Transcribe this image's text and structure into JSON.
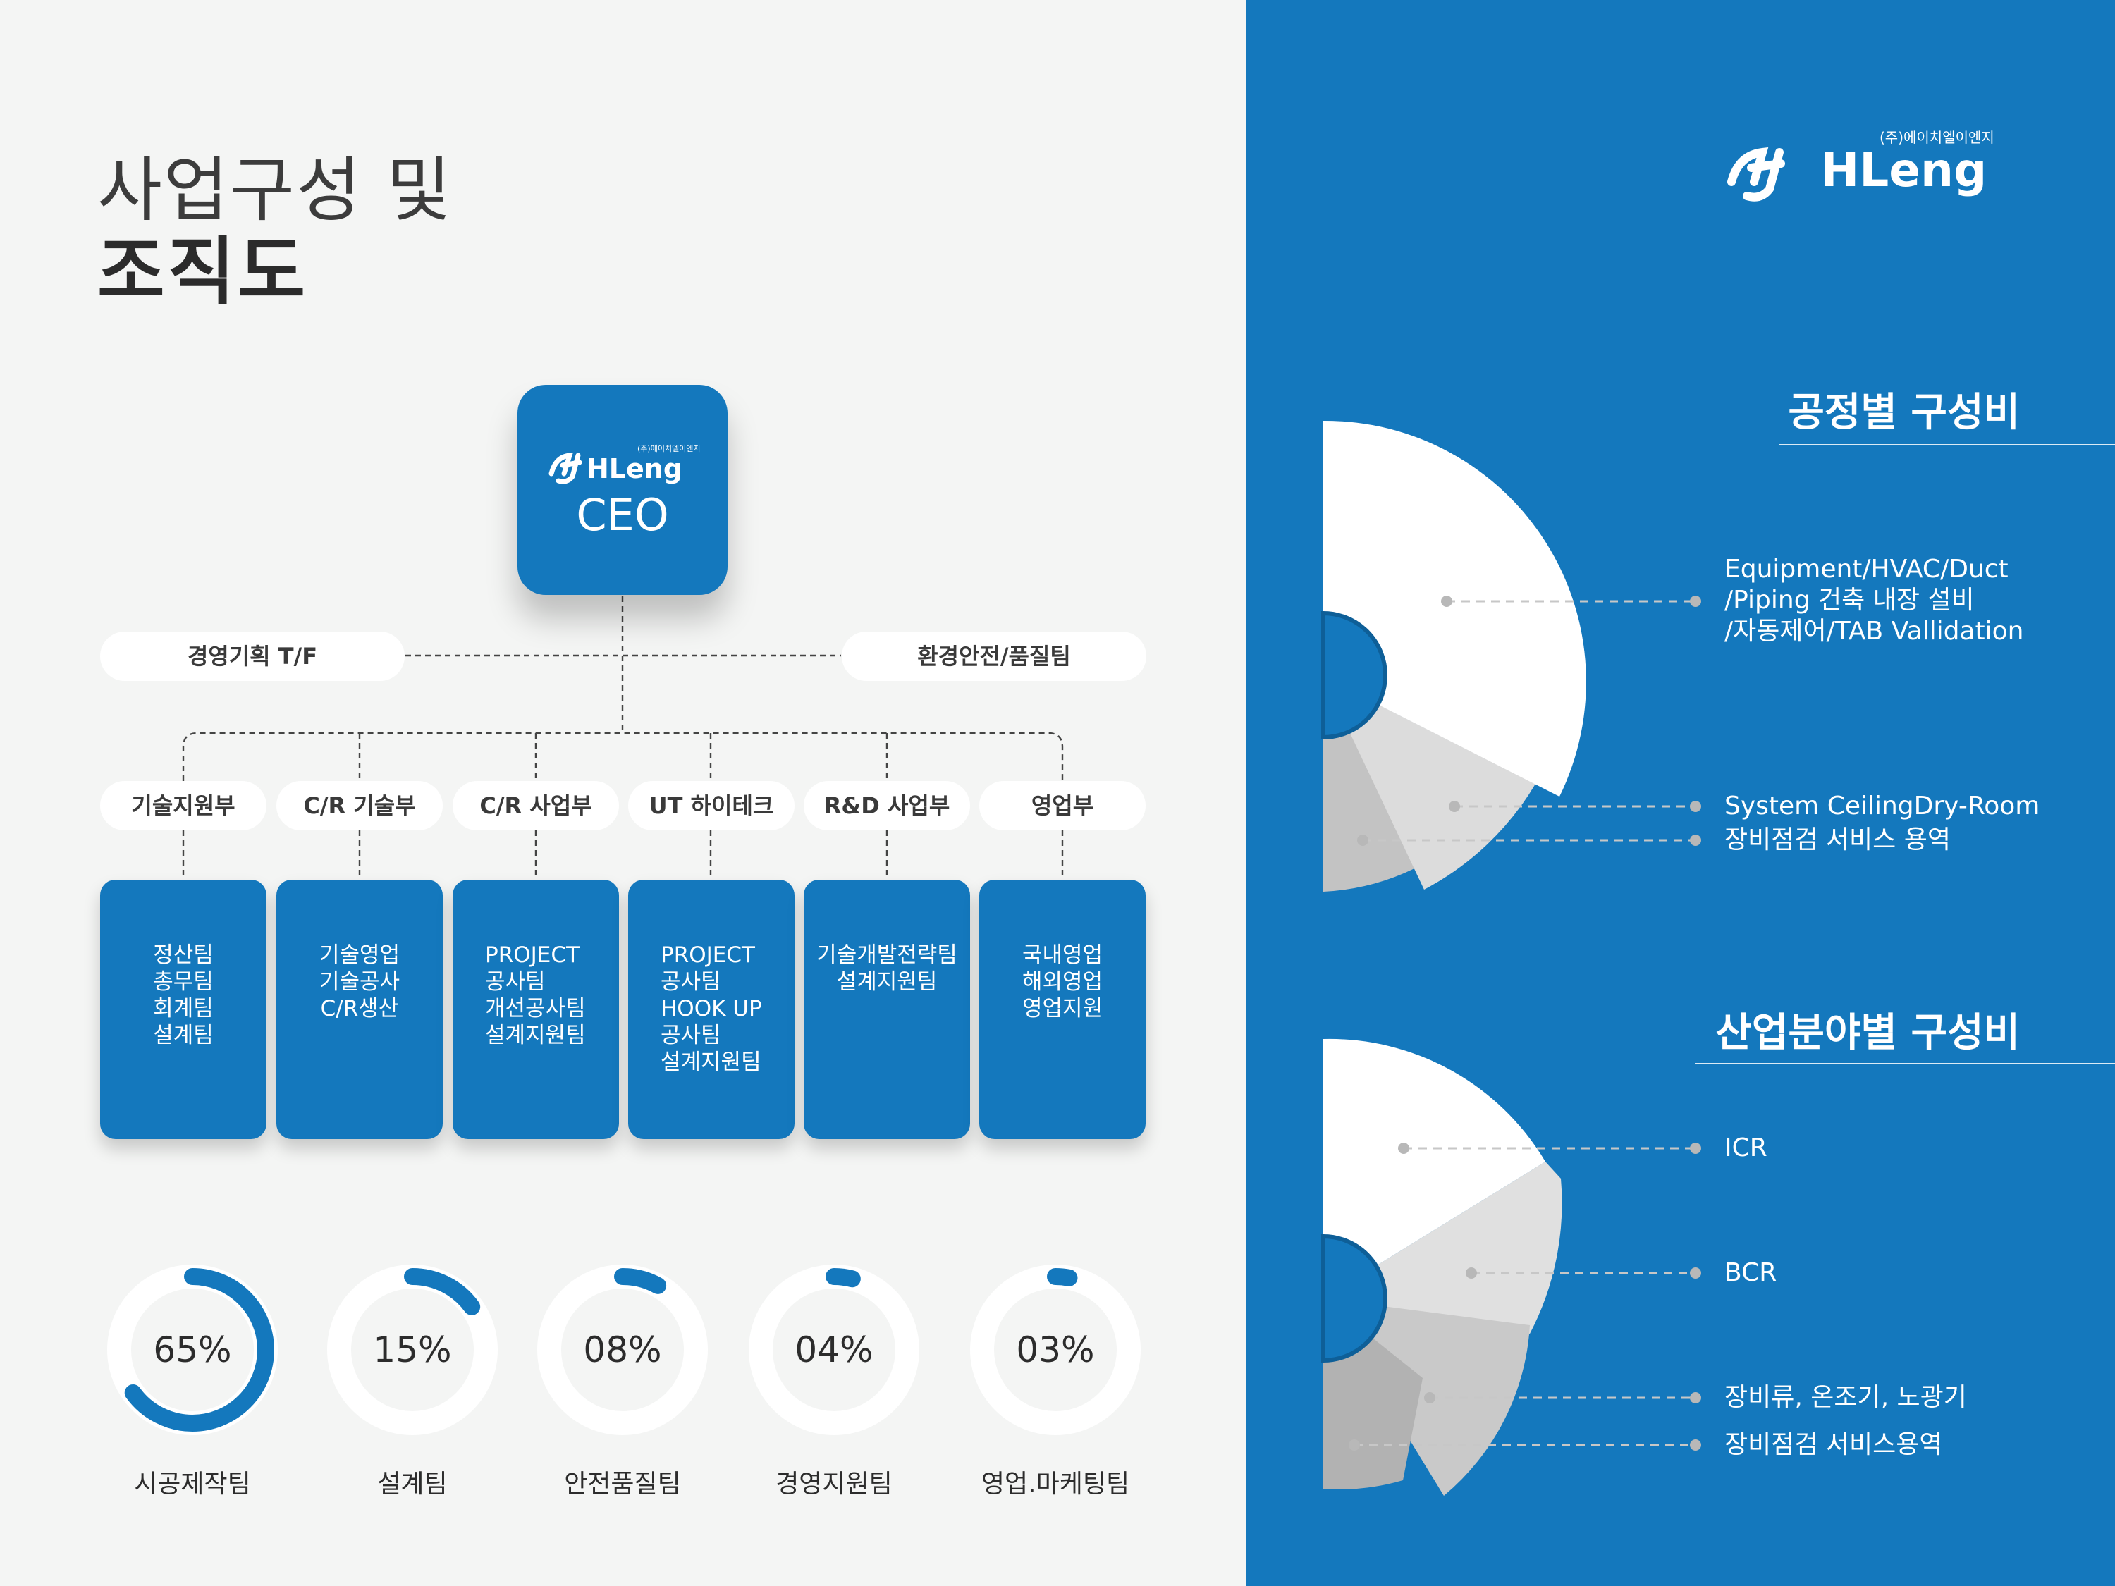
{
  "title": {
    "line1": "사업구성 및",
    "line2": "조직도"
  },
  "brand": {
    "name": "HLeng",
    "korean": "(주)에이치엘이엔지"
  },
  "org": {
    "ceo": "CEO",
    "side_left": "경영기획 T/F",
    "side_right": "환경안전/품질팀",
    "departments": [
      {
        "name": "기술지원부",
        "teams": [
          "정산팀",
          "총무팀",
          "회계팀",
          "설계팀"
        ]
      },
      {
        "name": "C/R 기술부",
        "teams": [
          "기술영업",
          "기술공사",
          "C/R생산"
        ]
      },
      {
        "name": "C/R 사업부",
        "teams": [
          "PROJECT",
          "공사팀",
          "개선공사팀",
          "설계지원팀"
        ]
      },
      {
        "name": "UT 하이테크",
        "teams": [
          "PROJECT",
          "공사팀",
          "HOOK UP",
          "공사팀",
          "설계지원팀"
        ]
      },
      {
        "name": "R&D 사업부",
        "teams": [
          "기술개발전략팀",
          "설계지원팀"
        ]
      },
      {
        "name": "영업부",
        "teams": [
          "국내영업",
          "해외영업",
          "영업지원"
        ]
      }
    ]
  },
  "staff_ratio": [
    {
      "label": "시공제작팀",
      "percent_text": "65%",
      "value": 65
    },
    {
      "label": "설계팀",
      "percent_text": "15%",
      "value": 15
    },
    {
      "label": "안전품질팀",
      "percent_text": "08%",
      "value": 8
    },
    {
      "label": "경영지원팀",
      "percent_text": "04%",
      "value": 4
    },
    {
      "label": "영업.마케팅팀",
      "percent_text": "03%",
      "value": 3
    }
  ],
  "process_section": {
    "title": "공정별 구성비",
    "items": [
      {
        "label_lines": [
          "Equipment/HVAC/Duct",
          "/Piping 건축 내장 설비",
          "/자동제어/TAB Vallidation"
        ]
      },
      {
        "label_lines": [
          "System CeilingDry-Room"
        ]
      },
      {
        "label_lines": [
          "장비점검 서비스 용역"
        ]
      }
    ]
  },
  "industry_section": {
    "title": "산업분야별 구성비",
    "items": [
      {
        "label_lines": [
          "ICR"
        ]
      },
      {
        "label_lines": [
          "BCR"
        ]
      },
      {
        "label_lines": [
          "장비류, 온조기, 노광기"
        ]
      },
      {
        "label_lines": [
          "장비점검 서비스용역"
        ]
      }
    ]
  },
  "colors": {
    "accent": "#1478bd",
    "ring": "#ffffff",
    "text": "#2c2c2c"
  }
}
